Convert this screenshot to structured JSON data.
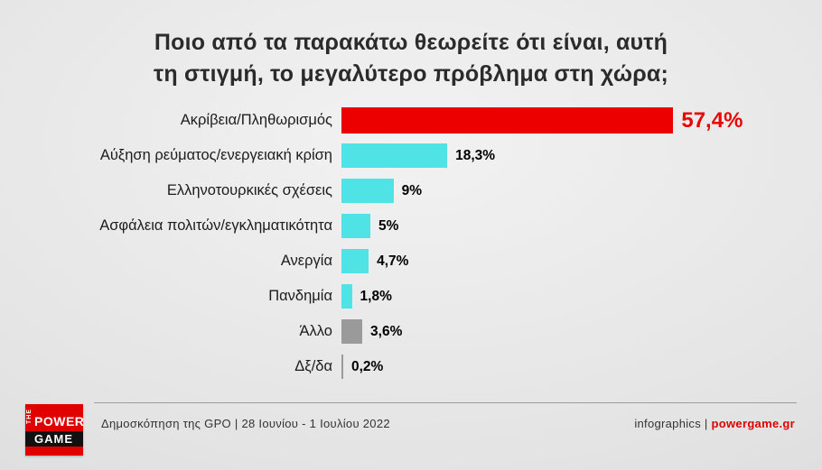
{
  "title": {
    "line1": "Ποιο από τα παρακάτω θεωρείτε ότι είναι, αυτή",
    "line2": "τη στιγμή, το μεγαλύτερο πρόβλημα στη χώρα;"
  },
  "chart_data": {
    "type": "bar",
    "orientation": "horizontal",
    "title": "Ποιο από τα παρακάτω θεωρείτε ότι είναι, αυτή τη στιγμή, το μεγαλύτερο πρόβλημα στη χώρα;",
    "categories": [
      "Ακρίβεια/Πληθωρισμός",
      "Αύξηση ρεύματος/ενεργειακή κρίση",
      "Ελληνοτουρκικές σχέσεις",
      "Ασφάλεια πολιτών/εγκληματικότητα",
      "Ανεργία",
      "Πανδημία",
      "Άλλο",
      "Δξ/δα"
    ],
    "values": [
      57.4,
      18.3,
      9,
      5,
      4.7,
      1.8,
      3.6,
      0.2
    ],
    "value_labels": [
      "57,4%",
      "18,3%",
      "9%",
      "5%",
      "4,7%",
      "1,8%",
      "3,6%",
      "0,2%"
    ],
    "bar_colors": [
      "#ec0000",
      "#4fe3e5",
      "#4fe3e5",
      "#4fe3e5",
      "#4fe3e5",
      "#4fe3e5",
      "#9a9a9a",
      "#9a9a9a"
    ],
    "highlight_index": 0,
    "xlim": [
      0,
      60
    ],
    "grid": false,
    "legend": "none"
  },
  "colors": {
    "accent_red": "#e60606",
    "bar_cyan": "#4fe3e5",
    "bar_gray": "#9a9a9a",
    "background": "#e3e3e3"
  },
  "footer": {
    "logo": {
      "the": "THE",
      "power": "POWER",
      "game": "GAME"
    },
    "source": "Δημοσκόπηση της GPO | 28 Ιουνίου - 1 Ιουλίου 2022",
    "credits_prefix": "infographics | ",
    "credits_brand": "powergame.gr"
  }
}
